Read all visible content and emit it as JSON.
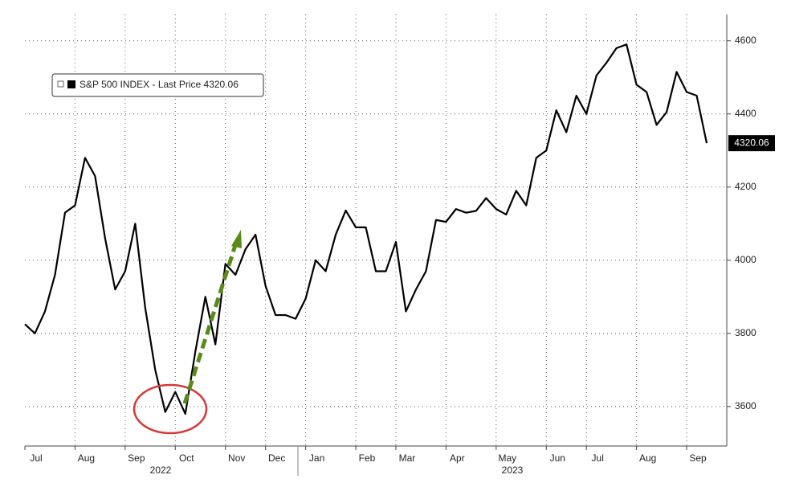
{
  "chart_data": {
    "type": "line",
    "series": [
      {
        "name": "S&P 500 INDEX - Last Price",
        "color": "#000000",
        "values": [
          3825,
          3800,
          3860,
          3960,
          4130,
          4150,
          4280,
          4230,
          4060,
          3920,
          3970,
          4100,
          3870,
          3700,
          3585,
          3640,
          3580,
          3750,
          3900,
          3770,
          3990,
          3960,
          4030,
          4070,
          3930,
          3850,
          3850,
          3840,
          3895,
          4000,
          3970,
          4070,
          4136,
          4090,
          4090,
          3970,
          3970,
          4050,
          3860,
          3920,
          3970,
          4110,
          4105,
          4140,
          4130,
          4135,
          4170,
          4140,
          4125,
          4190,
          4150,
          4280,
          4300,
          4410,
          4350,
          4450,
          4400,
          4505,
          4540,
          4580,
          4590,
          4480,
          4460,
          4370,
          4405,
          4515,
          4460,
          4450,
          4320.06
        ]
      }
    ],
    "xlim": [
      0,
      70
    ],
    "xticks": [
      {
        "value": 0,
        "label": "Jul"
      },
      {
        "value": 5,
        "label": "Aug"
      },
      {
        "value": 10,
        "label": "Sep"
      },
      {
        "value": 15,
        "label": "Oct"
      },
      {
        "value": 20,
        "label": "Nov"
      },
      {
        "value": 24,
        "label": "Dec"
      },
      {
        "value": 28,
        "label": "Jan"
      },
      {
        "value": 33,
        "label": "Feb"
      },
      {
        "value": 37,
        "label": "Mar"
      },
      {
        "value": 42,
        "label": "Apr"
      },
      {
        "value": 47,
        "label": "May"
      },
      {
        "value": 52,
        "label": "Jun"
      },
      {
        "value": 56,
        "label": "Jul"
      },
      {
        "value": 61,
        "label": "Aug"
      },
      {
        "value": 66,
        "label": "Sep"
      }
    ],
    "year_labels": [
      "2022",
      "2023"
    ],
    "ylim": [
      3492,
      4672
    ],
    "yticks": [
      3600,
      3800,
      4000,
      4200,
      4400,
      4600
    ],
    "grid": true
  }
}
